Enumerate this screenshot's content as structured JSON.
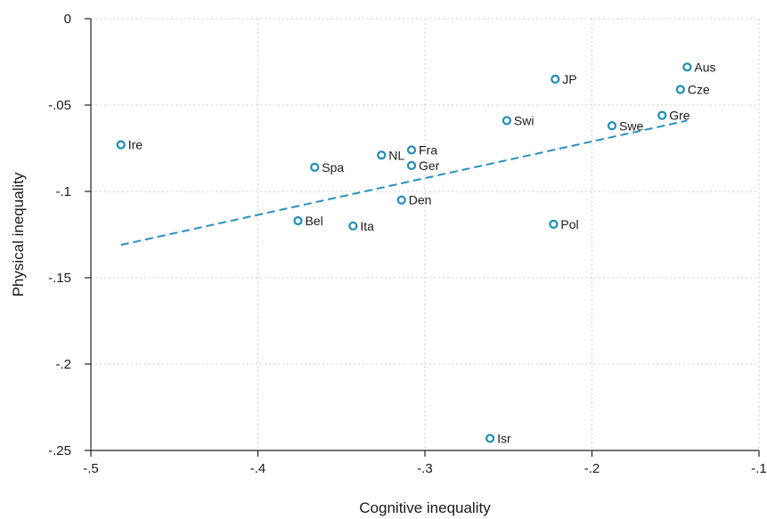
{
  "chart_data": {
    "type": "scatter",
    "title": "",
    "xlabel": "Cognitive inequality",
    "ylabel": "Physical inequality",
    "xlim": [
      -0.5,
      -0.1
    ],
    "ylim": [
      -0.25,
      0
    ],
    "x_ticks": [
      -0.5,
      -0.4,
      -0.3,
      -0.2,
      -0.1
    ],
    "x_tick_labels": [
      "-.5",
      "-.4",
      "-.3",
      "-.2",
      "-.1"
    ],
    "y_ticks": [
      0,
      -0.05,
      -0.1,
      -0.15,
      -0.2,
      -0.25
    ],
    "y_tick_labels": [
      "0",
      "-.05",
      "-.1",
      "-.15",
      "-.2",
      "-.25"
    ],
    "grid": true,
    "marker_color": "#1b8fb8",
    "fit_line_color": "#2a8fbf",
    "points": [
      {
        "label": "Ire",
        "x": -0.482,
        "y": -0.073
      },
      {
        "label": "Spa",
        "x": -0.366,
        "y": -0.086
      },
      {
        "label": "NL",
        "x": -0.326,
        "y": -0.079
      },
      {
        "label": "Fra",
        "x": -0.308,
        "y": -0.076
      },
      {
        "label": "Ger",
        "x": -0.308,
        "y": -0.085
      },
      {
        "label": "Den",
        "x": -0.314,
        "y": -0.105
      },
      {
        "label": "Bel",
        "x": -0.376,
        "y": -0.117
      },
      {
        "label": "Ita",
        "x": -0.343,
        "y": -0.12
      },
      {
        "label": "Swi",
        "x": -0.251,
        "y": -0.059
      },
      {
        "label": "JP",
        "x": -0.222,
        "y": -0.035
      },
      {
        "label": "Pol",
        "x": -0.223,
        "y": -0.119
      },
      {
        "label": "Isr",
        "x": -0.261,
        "y": -0.243
      },
      {
        "label": "Swe",
        "x": -0.188,
        "y": -0.062
      },
      {
        "label": "Gre",
        "x": -0.158,
        "y": -0.056
      },
      {
        "label": "Cze",
        "x": -0.147,
        "y": -0.041
      },
      {
        "label": "Aus",
        "x": -0.143,
        "y": -0.028
      }
    ],
    "fit_line": {
      "x": [
        -0.482,
        -0.143
      ],
      "y": [
        -0.131,
        -0.059
      ]
    }
  }
}
